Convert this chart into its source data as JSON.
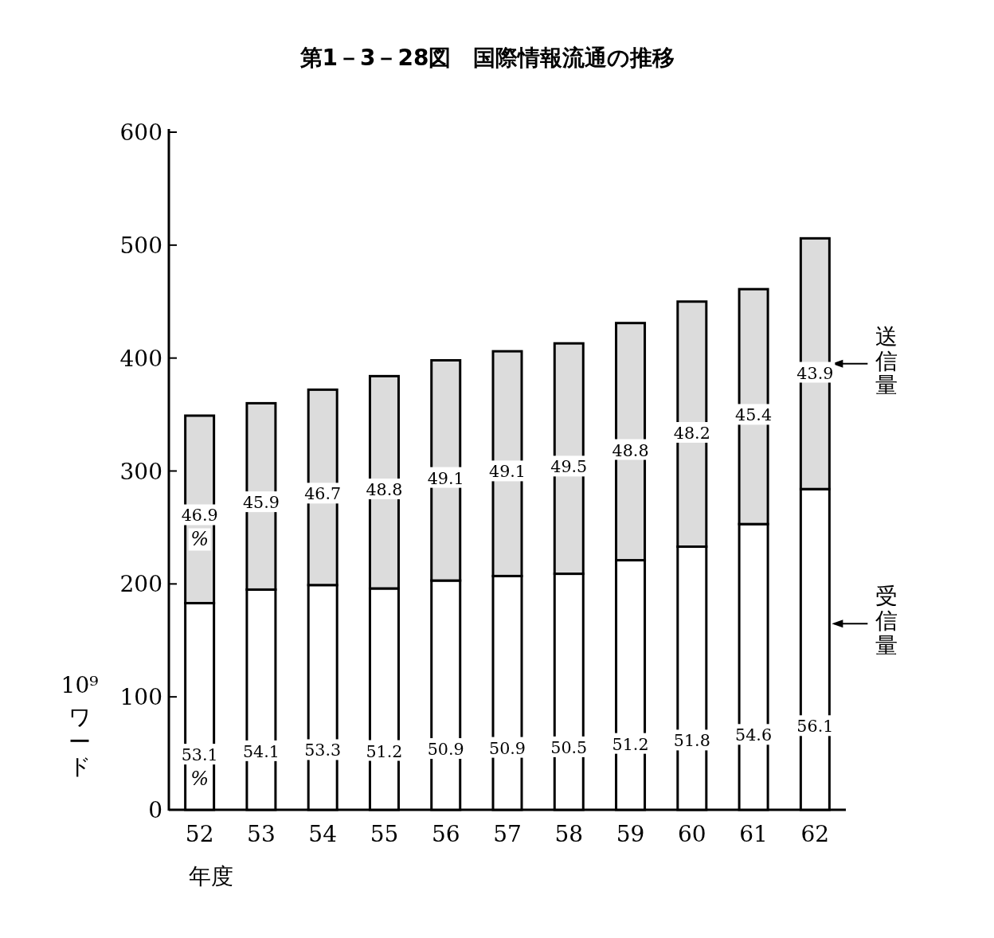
{
  "chart_data": {
    "type": "bar",
    "stacked": true,
    "title": "第1－3－28図　国際情報流通の推移",
    "xlabel": "年度",
    "ylabel": "10⁹ワード",
    "legend": "right",
    "categories": [
      "52",
      "53",
      "54",
      "55",
      "56",
      "57",
      "58",
      "59",
      "60",
      "61",
      "62"
    ],
    "ylim": [
      0,
      600
    ],
    "yticks": [
      0,
      100,
      200,
      300,
      400,
      500,
      600
    ],
    "series": [
      {
        "name": "受信量",
        "color": "#ffffff",
        "values": [
          183,
          195,
          199,
          196,
          203,
          207,
          209,
          221,
          233,
          253,
          284
        ]
      },
      {
        "name": "送信量",
        "color": "#dcdcdc",
        "values": [
          166,
          165,
          173,
          188,
          195,
          199,
          204,
          210,
          217,
          208,
          222
        ]
      }
    ],
    "annotations": [
      "53.1\n%",
      "54.1",
      "53.3",
      "51.2",
      "50.9",
      "50.9",
      "50.5",
      "51.2",
      "51.8",
      "54.6",
      "56.1",
      "46.9\n%",
      "45.9",
      "46.7",
      "48.8",
      "49.1",
      "49.1",
      "49.5",
      "48.8",
      "48.2",
      "45.4",
      "43.9"
    ]
  }
}
